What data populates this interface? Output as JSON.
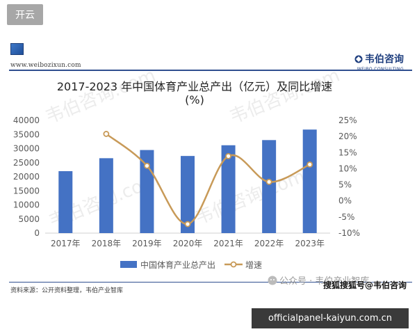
{
  "top_tag": "开云",
  "header": {
    "site_url": "www.weibozixun.com",
    "brand_name": "韦伯咨询",
    "brand_sub": "WEIBO CONSULTING"
  },
  "watermark_text": "韦伯咨询.com",
  "footer": {
    "source_note": "资料来源：公开资料整理，韦伯产业智库"
  },
  "overlays": {
    "wechat": "公众号 · 韦伯产业智库",
    "sohu": "搜狐搜狐号@韦伯咨询"
  },
  "bottom_bar": "officialpanel-kaiyun.com.cn",
  "colors": {
    "bar": "#4472c4",
    "line": "#c89a58",
    "axis_text": "#595959",
    "bottom_bar_bg": "#3a3a3a"
  },
  "chart_data": {
    "type": "bar",
    "title_line1": "2017-2023 年中国体育产业总产出（亿元）及同比增速",
    "title_line2": "(%)",
    "categories": [
      "2017年",
      "2018年",
      "2019年",
      "2020年",
      "2021年",
      "2022年",
      "2023年"
    ],
    "series": [
      {
        "name": "中国体育产业总产出",
        "type": "bar",
        "axis": "left",
        "values": [
          21988,
          26579,
          29483,
          27372,
          31175,
          33008,
          36741
        ]
      },
      {
        "name": "增速",
        "type": "line",
        "axis": "right",
        "values": [
          null,
          20.8,
          10.9,
          -7.2,
          13.9,
          5.9,
          11.3
        ]
      }
    ],
    "y_left": {
      "ylim": [
        0,
        40000
      ],
      "ticks": [
        "0",
        "5000",
        "10000",
        "15000",
        "20000",
        "25000",
        "30000",
        "35000",
        "40000"
      ]
    },
    "y_right": {
      "ylim": [
        -10,
        25
      ],
      "ticks": [
        "-10%",
        "-5%",
        "0%",
        "5%",
        "10%",
        "15%",
        "20%",
        "25%"
      ]
    },
    "grid": false,
    "legend_position": "bottom"
  }
}
